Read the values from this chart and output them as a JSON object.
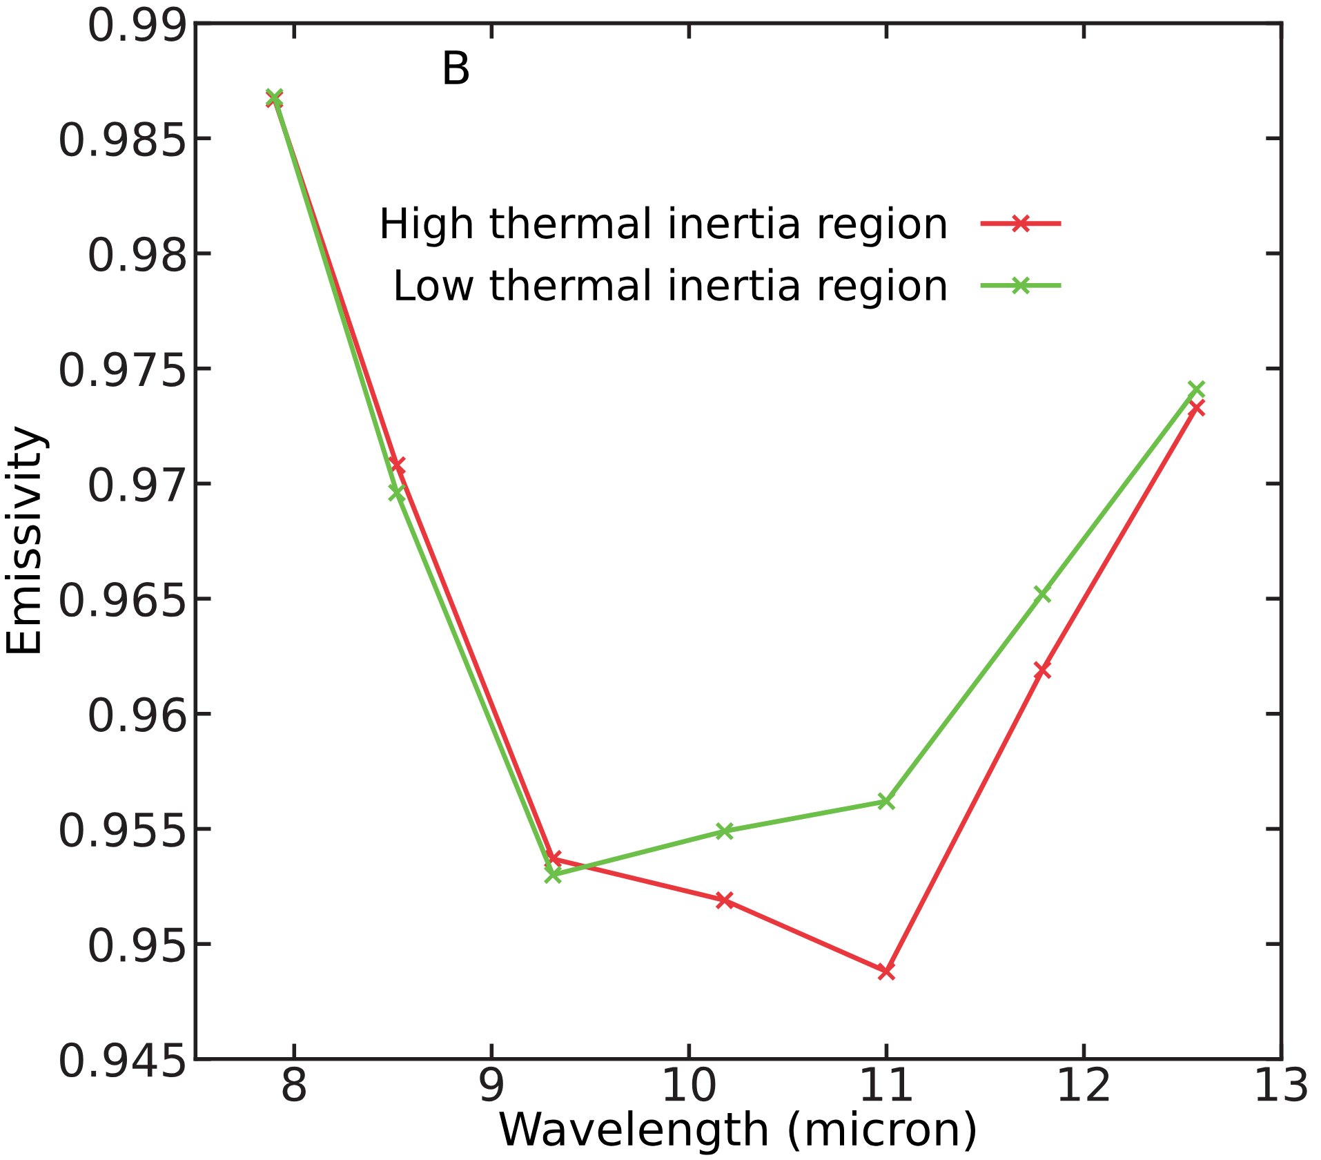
{
  "chart_data": {
    "type": "line",
    "xlabel": "Wavelength (micron)",
    "ylabel": "Emissivity",
    "annotations": [
      "B"
    ],
    "x": [
      7.9,
      8.52,
      9.31,
      10.18,
      11.0,
      11.79,
      12.57
    ],
    "series": [
      {
        "name": "High thermal inertia region",
        "color": "#e8383d",
        "values": [
          0.9867,
          0.9708,
          0.9537,
          0.9519,
          0.9488,
          0.9619,
          0.9733
        ]
      },
      {
        "name": "Low thermal inertia region",
        "color": "#6cc04a",
        "values": [
          0.9868,
          0.9696,
          0.953,
          0.9549,
          0.9562,
          0.9652,
          0.9741
        ]
      }
    ],
    "xlim": [
      7.5,
      13
    ],
    "xticks": [
      8,
      9,
      10,
      11,
      12,
      13
    ],
    "ylim": [
      0.945,
      0.99
    ],
    "yticks": [
      0.945,
      0.95,
      0.955,
      0.96,
      0.965,
      0.97,
      0.975,
      0.98,
      0.985,
      0.99
    ],
    "grid": false,
    "legend": "top right",
    "marker": "cross",
    "line_style": "solid"
  }
}
